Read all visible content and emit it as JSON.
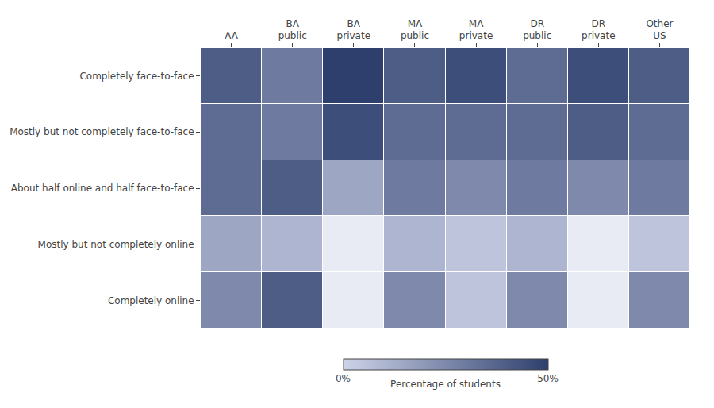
{
  "chart_data": {
    "type": "heatmap",
    "x": [
      "AA",
      "BA\npublic",
      "BA\nprivate",
      "MA\npublic",
      "MA\nprivate",
      "DR\npublic",
      "DR\nprivate",
      "Other\nUS"
    ],
    "y": [
      "Completely face-to-face",
      "Mostly but not completely face-to-face",
      "About half online and half face-to-face",
      "Mostly but not completely online",
      "Completely online"
    ],
    "values": [
      [
        40,
        30,
        50,
        40,
        45,
        35,
        45,
        40
      ],
      [
        35,
        30,
        45,
        35,
        35,
        35,
        40,
        35
      ],
      [
        35,
        40,
        15,
        30,
        25,
        30,
        25,
        30
      ],
      [
        15,
        10,
        0,
        10,
        5,
        10,
        0,
        5
      ],
      [
        25,
        40,
        0,
        25,
        5,
        25,
        0,
        25
      ]
    ],
    "colorscale": [
      "#cdd3e8",
      "#2e3f6e"
    ],
    "zero_color": "#e8eaf4",
    "zlim": [
      0,
      50
    ],
    "zticks": [
      {
        "value": 0,
        "label": "0%"
      },
      {
        "value": 50,
        "label": "50%"
      }
    ],
    "colorbar_title": "Percentage of students",
    "grid": false
  }
}
